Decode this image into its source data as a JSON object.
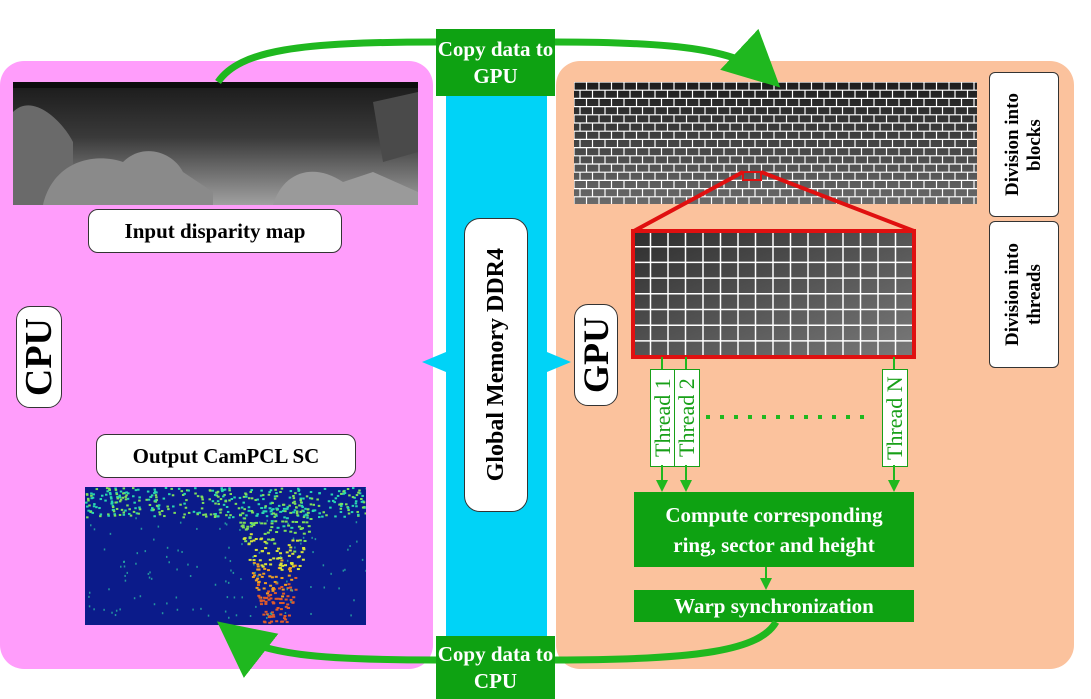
{
  "cpu": {
    "label": "CPU",
    "input_caption": "Input disparity map",
    "output_caption": "Output CamPCL SC"
  },
  "memory": {
    "label": "Global Memory DDR4"
  },
  "gpu": {
    "label": "GPU",
    "division_blocks": "Division into blocks",
    "division_threads": "Division into threads",
    "threads": [
      "Thread 1",
      "Thread 2",
      "Thread N"
    ],
    "compute_label": "Compute corresponding ring, sector and height",
    "warp_label": "Warp synchronization"
  },
  "transfers": {
    "to_gpu": "Copy data to GPU",
    "to_cpu": "Copy data to CPU"
  },
  "colors": {
    "cpu_panel": "#ff9dfb",
    "gpu_panel": "#fbc29d",
    "memory_bar": "#00d3f7",
    "arrow_green": "#1fb81f",
    "box_green": "#0ea212",
    "zoom_red": "#e01010"
  }
}
